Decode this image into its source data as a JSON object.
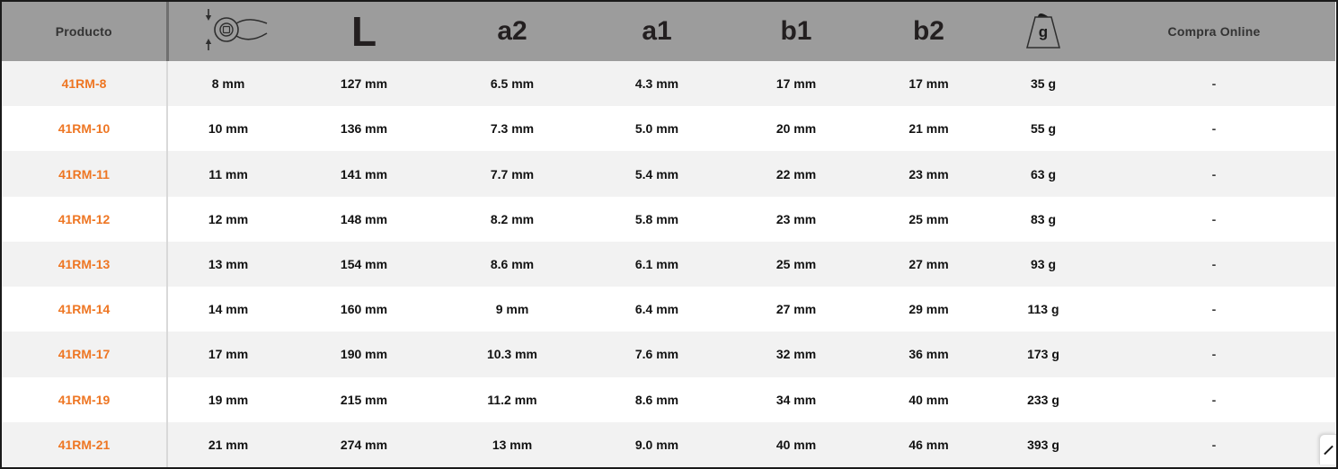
{
  "table": {
    "header": {
      "producto_label": "Producto",
      "size_icon": "wrench-ring-size-icon",
      "length_label": "L",
      "a2_label": "a2",
      "a1_label": "a1",
      "b1_label": "b1",
      "b2_label": "b2",
      "weight_icon": "weight-grams-icon",
      "weight_icon_letter": "g",
      "compra_label": "Compra Online"
    },
    "rows": [
      {
        "producto": "41RM-8",
        "size": "8 mm",
        "length": "127 mm",
        "a2": "6.5 mm",
        "a1": "4.3 mm",
        "b1": "17 mm",
        "b2": "17 mm",
        "weight": "35 g",
        "compra": "-"
      },
      {
        "producto": "41RM-10",
        "size": "10 mm",
        "length": "136 mm",
        "a2": "7.3 mm",
        "a1": "5.0 mm",
        "b1": "20 mm",
        "b2": "21 mm",
        "weight": "55 g",
        "compra": "-"
      },
      {
        "producto": "41RM-11",
        "size": "11 mm",
        "length": "141 mm",
        "a2": "7.7 mm",
        "a1": "5.4 mm",
        "b1": "22 mm",
        "b2": "23 mm",
        "weight": "63 g",
        "compra": "-"
      },
      {
        "producto": "41RM-12",
        "size": "12 mm",
        "length": "148 mm",
        "a2": "8.2 mm",
        "a1": "5.8 mm",
        "b1": "23 mm",
        "b2": "25 mm",
        "weight": "83 g",
        "compra": "-"
      },
      {
        "producto": "41RM-13",
        "size": "13 mm",
        "length": "154 mm",
        "a2": "8.6 mm",
        "a1": "6.1 mm",
        "b1": "25 mm",
        "b2": "27 mm",
        "weight": "93 g",
        "compra": "-"
      },
      {
        "producto": "41RM-14",
        "size": "14 mm",
        "length": "160 mm",
        "a2": "9 mm",
        "a1": "6.4 mm",
        "b1": "27 mm",
        "b2": "29 mm",
        "weight": "113 g",
        "compra": "-"
      },
      {
        "producto": "41RM-17",
        "size": "17 mm",
        "length": "190 mm",
        "a2": "10.3 mm",
        "a1": "7.6 mm",
        "b1": "32 mm",
        "b2": "36 mm",
        "weight": "173 g",
        "compra": "-"
      },
      {
        "producto": "41RM-19",
        "size": "19 mm",
        "length": "215 mm",
        "a2": "11.2 mm",
        "a1": "8.6 mm",
        "b1": "34 mm",
        "b2": "40 mm",
        "weight": "233 g",
        "compra": "-"
      },
      {
        "producto": "41RM-21",
        "size": "21 mm",
        "length": "274 mm",
        "a2": "13 mm",
        "a1": "9.0 mm",
        "b1": "40 mm",
        "b2": "46 mm",
        "weight": "393 g",
        "compra": "-"
      }
    ]
  },
  "colors": {
    "accent_orange": "#ee7623",
    "header_bg": "#9c9c9c",
    "row_alt_bg": "#f2f2f2",
    "border_black": "#1a1a1a"
  },
  "corner_widget": {
    "glyph": "diagonal-resize"
  }
}
